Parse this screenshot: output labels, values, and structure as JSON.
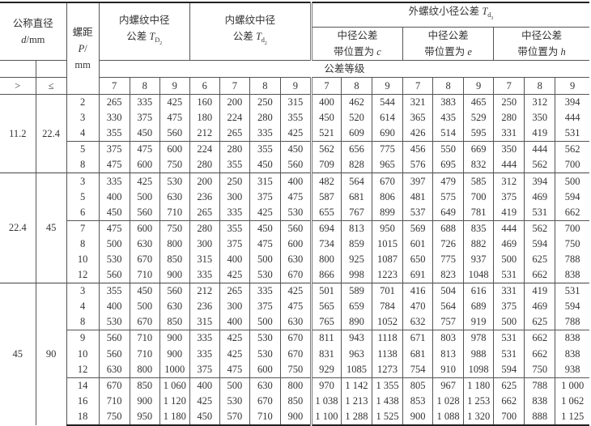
{
  "header": {
    "nominal_diameter": {
      "label": "公称直径",
      "symbol": "d",
      "unit": "/mm"
    },
    "pitch": {
      "label": "螺距",
      "symbol": "P",
      "slash": "/",
      "unit": "mm"
    },
    "td2_internal": {
      "line1": "内螺纹中径",
      "line2": "公差",
      "symbol": "T",
      "sub": "D",
      "subsub": "2"
    },
    "td2_external": {
      "line1": "内螺纹中径",
      "line2": "公差",
      "symbol": "T",
      "sub": "d",
      "subsub": "2"
    },
    "td3": {
      "label": "外螺纹小径公差",
      "symbol": "T",
      "sub": "d",
      "subsub": "3"
    },
    "positions": [
      {
        "line1": "中径公差",
        "line2": "带位置为",
        "symbol": "c"
      },
      {
        "line1": "中径公差",
        "line2": "带位置为",
        "symbol": "e"
      },
      {
        "line1": "中径公差",
        "line2": "带位置为",
        "symbol": "h"
      }
    ],
    "tolerance_grade": "公差等级",
    "gt": ">",
    "le": "≤",
    "grades": [
      "7",
      "8",
      "9",
      "6",
      "7",
      "8",
      "9",
      "7",
      "8",
      "9",
      "7",
      "8",
      "9",
      "7",
      "8",
      "9"
    ]
  },
  "groups": [
    {
      "min": "11.2",
      "max": "22.4",
      "subgroups": [
        [
          {
            "p": "2",
            "v": [
              "265",
              "335",
              "425",
              "160",
              "200",
              "250",
              "315",
              "400",
              "462",
              "544",
              "321",
              "383",
              "465",
              "250",
              "312",
              "394"
            ]
          },
          {
            "p": "3",
            "v": [
              "330",
              "375",
              "475",
              "180",
              "224",
              "280",
              "355",
              "450",
              "520",
              "614",
              "365",
              "435",
              "529",
              "280",
              "350",
              "444"
            ]
          },
          {
            "p": "4",
            "v": [
              "355",
              "450",
              "560",
              "212",
              "265",
              "335",
              "425",
              "521",
              "609",
              "690",
              "426",
              "514",
              "595",
              "331",
              "419",
              "531"
            ]
          }
        ],
        [
          {
            "p": "5",
            "v": [
              "375",
              "475",
              "600",
              "224",
              "280",
              "355",
              "450",
              "562",
              "656",
              "775",
              "456",
              "550",
              "669",
              "350",
              "444",
              "562"
            ]
          },
          {
            "p": "8",
            "v": [
              "475",
              "600",
              "750",
              "280",
              "355",
              "450",
              "560",
              "709",
              "828",
              "965",
              "576",
              "695",
              "832",
              "444",
              "562",
              "700"
            ]
          }
        ]
      ]
    },
    {
      "min": "22.4",
      "max": "45",
      "subgroups": [
        [
          {
            "p": "3",
            "v": [
              "335",
              "425",
              "530",
              "200",
              "250",
              "315",
              "400",
              "482",
              "564",
              "670",
              "397",
              "479",
              "585",
              "312",
              "394",
              "500"
            ]
          },
          {
            "p": "5",
            "v": [
              "400",
              "500",
              "630",
              "236",
              "300",
              "375",
              "475",
              "587",
              "681",
              "806",
              "481",
              "575",
              "700",
              "375",
              "469",
              "594"
            ]
          },
          {
            "p": "6",
            "v": [
              "450",
              "560",
              "710",
              "265",
              "335",
              "425",
              "530",
              "655",
              "767",
              "899",
              "537",
              "649",
              "781",
              "419",
              "531",
              "662"
            ]
          }
        ],
        [
          {
            "p": "7",
            "v": [
              "475",
              "600",
              "750",
              "280",
              "355",
              "450",
              "560",
              "694",
              "813",
              "950",
              "569",
              "688",
              "835",
              "444",
              "562",
              "700"
            ]
          },
          {
            "p": "8",
            "v": [
              "500",
              "630",
              "800",
              "300",
              "375",
              "475",
              "600",
              "734",
              "859",
              "1015",
              "601",
              "726",
              "882",
              "469",
              "594",
              "750"
            ]
          },
          {
            "p": "10",
            "v": [
              "530",
              "670",
              "850",
              "315",
              "400",
              "500",
              "630",
              "800",
              "925",
              "1087",
              "650",
              "775",
              "937",
              "500",
              "625",
              "788"
            ]
          },
          {
            "p": "12",
            "v": [
              "560",
              "710",
              "900",
              "335",
              "425",
              "530",
              "670",
              "866",
              "998",
              "1223",
              "691",
              "823",
              "1048",
              "531",
              "662",
              "838"
            ]
          }
        ]
      ]
    },
    {
      "min": "45",
      "max": "90",
      "subgroups": [
        [
          {
            "p": "3",
            "v": [
              "355",
              "450",
              "560",
              "212",
              "265",
              "335",
              "425",
              "501",
              "589",
              "701",
              "416",
              "504",
              "616",
              "331",
              "419",
              "531"
            ]
          },
          {
            "p": "4",
            "v": [
              "400",
              "500",
              "630",
              "236",
              "300",
              "375",
              "475",
              "565",
              "659",
              "784",
              "470",
              "564",
              "689",
              "375",
              "469",
              "594"
            ]
          },
          {
            "p": "8",
            "v": [
              "530",
              "670",
              "850",
              "315",
              "400",
              "500",
              "630",
              "765",
              "890",
              "1052",
              "632",
              "757",
              "919",
              "500",
              "625",
              "788"
            ]
          }
        ],
        [
          {
            "p": "9",
            "v": [
              "560",
              "710",
              "900",
              "335",
              "425",
              "530",
              "670",
              "811",
              "943",
              "1118",
              "671",
              "803",
              "978",
              "531",
              "662",
              "838"
            ]
          },
          {
            "p": "10",
            "v": [
              "560",
              "710",
              "900",
              "335",
              "425",
              "530",
              "670",
              "831",
              "963",
              "1138",
              "681",
              "813",
              "988",
              "531",
              "662",
              "838"
            ]
          },
          {
            "p": "12",
            "v": [
              "630",
              "800",
              "1000",
              "375",
              "475",
              "600",
              "750",
              "929",
              "1085",
              "1273",
              "754",
              "910",
              "1098",
              "594",
              "750",
              "938"
            ]
          }
        ],
        [
          {
            "p": "14",
            "v": [
              "670",
              "850",
              "1 060",
              "400",
              "500",
              "630",
              "800",
              "970",
              "1 142",
              "1 355",
              "805",
              "967",
              "1 180",
              "625",
              "788",
              "1 000"
            ]
          },
          {
            "p": "16",
            "v": [
              "710",
              "900",
              "1 120",
              "425",
              "530",
              "670",
              "850",
              "1 038",
              "1 213",
              "1 438",
              "853",
              "1 028",
              "1 253",
              "662",
              "838",
              "1 062"
            ]
          },
          {
            "p": "18",
            "v": [
              "750",
              "950",
              "1 180",
              "450",
              "570",
              "710",
              "900",
              "1 100",
              "1 288",
              "1 525",
              "900",
              "1 088",
              "1 320",
              "700",
              "888",
              "1 125"
            ]
          }
        ]
      ]
    }
  ]
}
